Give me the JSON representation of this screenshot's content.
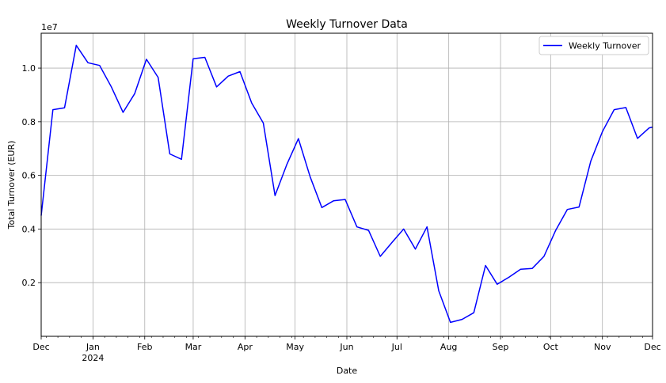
{
  "chart_data": {
    "type": "line",
    "title": "Weekly Turnover Data",
    "xlabel": "Date",
    "ylabel": "Total Turnover (EUR)",
    "y_offset_label": "1e7",
    "grid": true,
    "legend_position": "upper-right",
    "xlim": [
      "2023-12-01",
      "2024-12-01"
    ],
    "ylim": [
      0,
      11300000
    ],
    "x_ticks": [
      {
        "date": "2023-12-01",
        "label": "Dec",
        "sublabel": ""
      },
      {
        "date": "2024-01-01",
        "label": "Jan",
        "sublabel": "2024"
      },
      {
        "date": "2024-02-01",
        "label": "Feb",
        "sublabel": ""
      },
      {
        "date": "2024-03-01",
        "label": "Mar",
        "sublabel": ""
      },
      {
        "date": "2024-04-01",
        "label": "Apr",
        "sublabel": ""
      },
      {
        "date": "2024-05-01",
        "label": "May",
        "sublabel": ""
      },
      {
        "date": "2024-06-01",
        "label": "Jun",
        "sublabel": ""
      },
      {
        "date": "2024-07-01",
        "label": "Jul",
        "sublabel": ""
      },
      {
        "date": "2024-08-01",
        "label": "Aug",
        "sublabel": ""
      },
      {
        "date": "2024-09-01",
        "label": "Sep",
        "sublabel": ""
      },
      {
        "date": "2024-10-01",
        "label": "Oct",
        "sublabel": ""
      },
      {
        "date": "2024-11-01",
        "label": "Nov",
        "sublabel": ""
      },
      {
        "date": "2024-12-01",
        "label": "Dec",
        "sublabel": ""
      }
    ],
    "y_ticks": [
      {
        "value": 2000000,
        "label": "0.2"
      },
      {
        "value": 4000000,
        "label": "0.4"
      },
      {
        "value": 6000000,
        "label": "0.6"
      },
      {
        "value": 8000000,
        "label": "0.8"
      },
      {
        "value": 10000000,
        "label": "1.0"
      }
    ],
    "series": [
      {
        "name": "Weekly Turnover",
        "color": "#0000ff",
        "x": [
          "2023-12-01",
          "2023-12-08",
          "2023-12-15",
          "2023-12-22",
          "2023-12-29",
          "2024-01-05",
          "2024-01-12",
          "2024-01-19",
          "2024-01-26",
          "2024-02-02",
          "2024-02-09",
          "2024-02-16",
          "2024-02-23",
          "2024-03-01",
          "2024-03-08",
          "2024-03-15",
          "2024-03-22",
          "2024-03-29",
          "2024-04-05",
          "2024-04-12",
          "2024-04-19",
          "2024-04-26",
          "2024-05-03",
          "2024-05-10",
          "2024-05-17",
          "2024-05-24",
          "2024-05-31",
          "2024-06-07",
          "2024-06-14",
          "2024-06-21",
          "2024-06-28",
          "2024-07-05",
          "2024-07-12",
          "2024-07-19",
          "2024-07-26",
          "2024-08-02",
          "2024-08-09",
          "2024-08-16",
          "2024-08-23",
          "2024-08-30",
          "2024-09-06",
          "2024-09-13",
          "2024-09-20",
          "2024-09-27",
          "2024-10-04",
          "2024-10-11",
          "2024-10-18",
          "2024-10-25",
          "2024-11-01",
          "2024-11-08",
          "2024-11-15",
          "2024-11-22",
          "2024-11-29",
          "2024-12-01"
        ],
        "values": [
          4500000,
          8450000,
          8520000,
          10850000,
          10200000,
          10100000,
          9300000,
          8350000,
          9050000,
          10330000,
          9650000,
          6800000,
          6600000,
          10350000,
          10400000,
          9300000,
          9700000,
          9870000,
          8700000,
          7950000,
          5250000,
          6400000,
          7370000,
          5950000,
          4800000,
          5050000,
          5100000,
          4080000,
          3950000,
          2980000,
          3500000,
          4000000,
          3250000,
          4080000,
          1700000,
          520000,
          630000,
          880000,
          2640000,
          1940000,
          2200000,
          2500000,
          2530000,
          2980000,
          3950000,
          4730000,
          4820000,
          6530000,
          7630000,
          8450000,
          8530000,
          7380000,
          7770000,
          7800000
        ]
      }
    ]
  }
}
